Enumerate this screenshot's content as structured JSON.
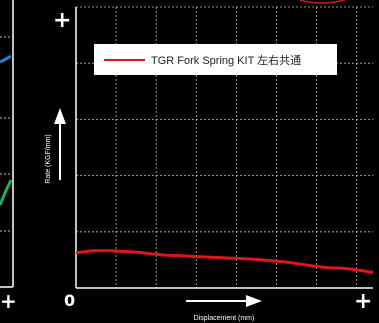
{
  "colors": {
    "background": "#000000",
    "grid": "#bdbdbd",
    "series_main": "#e0141c",
    "left_blue": "#2a7fd0",
    "left_green": "#1fae5a",
    "top_red_arc": "#cc1a1a"
  },
  "icons": {
    "plus": "+",
    "zero": "0",
    "up_arrow": "up-arrow-icon",
    "right_arrow": "right-arrow-icon"
  },
  "left_panel": {
    "x_plus": "+"
  },
  "chart_data": {
    "type": "line",
    "title": "",
    "xlabel": "Displacement (mm)",
    "ylabel": "Rate (KGF/mm)",
    "x_origin_label": "0",
    "x_max_label": "+",
    "y_max_label": "+",
    "xlim": [
      0,
      10
    ],
    "ylim": [
      0,
      10
    ],
    "grid": true,
    "legend": "top-left",
    "series": [
      {
        "name": "TGR Fork Spring KIT 左右共通",
        "color": "#e0141c",
        "x": [
          0,
          0.5,
          1,
          1.5,
          2,
          2.5,
          3,
          3.5,
          4,
          4.5,
          5,
          5.5,
          6,
          6.5,
          7,
          7.5,
          8,
          8.5,
          9,
          9.5,
          10
        ],
        "values": [
          1.25,
          1.32,
          1.33,
          1.31,
          1.28,
          1.22,
          1.17,
          1.15,
          1.12,
          1.1,
          1.07,
          1.05,
          1.02,
          0.98,
          0.93,
          0.86,
          0.78,
          0.72,
          0.7,
          0.64,
          0.55
        ]
      }
    ]
  }
}
